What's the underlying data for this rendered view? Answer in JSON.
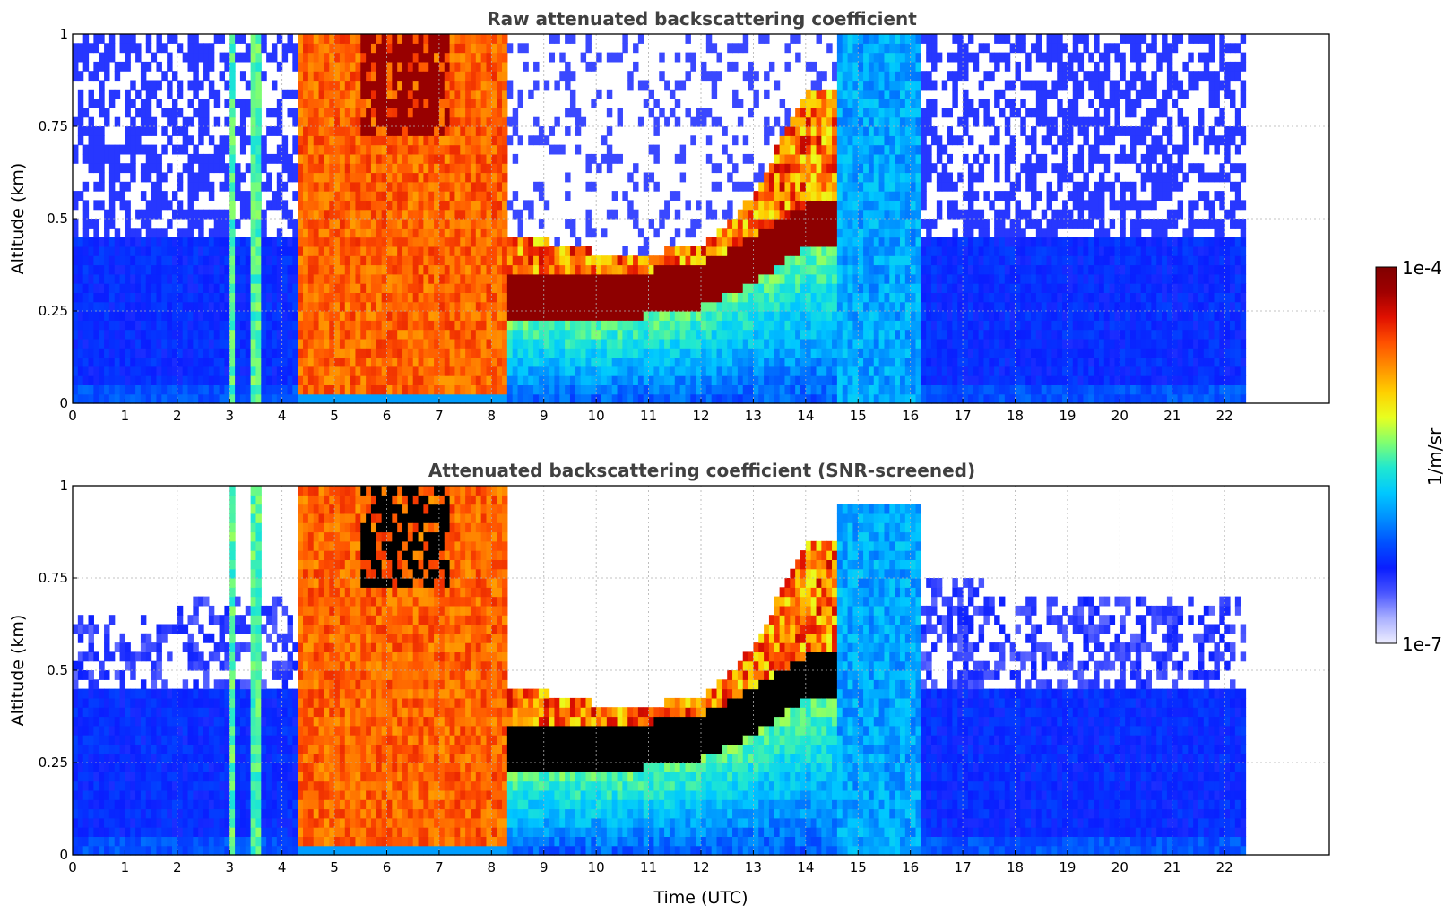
{
  "chart_data": [
    {
      "type": "heatmap",
      "title": "Raw attenuated backscattering coefficient",
      "xlabel": "",
      "ylabel": "Altitude (km)",
      "xlim": [
        0,
        24
      ],
      "ylim": [
        0,
        1
      ],
      "x_ticks": [
        "0",
        "1",
        "2",
        "3",
        "4",
        "5",
        "6",
        "7",
        "8",
        "9",
        "10",
        "11",
        "12",
        "13",
        "14",
        "15",
        "16",
        "17",
        "18",
        "19",
        "20",
        "21",
        "22"
      ],
      "y_ticks": [
        "0",
        "0.25",
        "0.5",
        "0.75",
        "1"
      ],
      "data_extent_x": [
        0,
        22.4
      ],
      "grid": true,
      "cloud_base_km": [
        {
          "t": 8.3,
          "base": 0.22,
          "top": 0.44
        },
        {
          "t": 9.0,
          "base": 0.23,
          "top": 0.44
        },
        {
          "t": 10.0,
          "base": 0.22,
          "top": 0.41
        },
        {
          "t": 11.0,
          "base": 0.24,
          "top": 0.41
        },
        {
          "t": 12.0,
          "base": 0.26,
          "top": 0.42
        },
        {
          "t": 13.0,
          "base": 0.33,
          "top": 0.56
        },
        {
          "t": 14.0,
          "base": 0.42,
          "top": 0.85
        }
      ]
    },
    {
      "type": "heatmap",
      "title": "Attenuated backscattering coefficient (SNR-screened)",
      "xlabel": "Time (UTC)",
      "ylabel": "Altitude (km)",
      "xlim": [
        0,
        24
      ],
      "ylim": [
        0,
        1
      ],
      "x_ticks": [
        "0",
        "1",
        "2",
        "3",
        "4",
        "5",
        "6",
        "7",
        "8",
        "9",
        "10",
        "11",
        "12",
        "13",
        "14",
        "15",
        "16",
        "17",
        "18",
        "19",
        "20",
        "21",
        "22"
      ],
      "y_ticks": [
        "0",
        "0.25",
        "0.5",
        "0.75",
        "1"
      ],
      "data_extent_x": [
        0,
        22.4
      ],
      "grid": true
    }
  ],
  "colorbar": {
    "label": "1/m/sr",
    "min_label": "1e-7",
    "max_label": "1e-4",
    "scale": "log",
    "colors": [
      "#eeeeff",
      "#aab0ff",
      "#4a56ff",
      "#0a1eff",
      "#0050ff",
      "#0090ff",
      "#00c8ff",
      "#20e8d0",
      "#80ff70",
      "#e8ff20",
      "#ffd000",
      "#ff9000",
      "#ff5000",
      "#e01000",
      "#a00000",
      "#800000"
    ]
  },
  "colors": {
    "frame": "#000000",
    "grid": "#b0b0b0"
  }
}
